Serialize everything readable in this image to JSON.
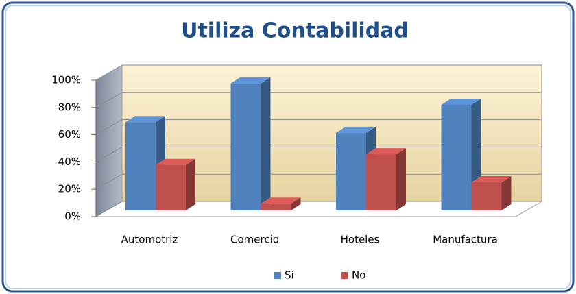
{
  "chart_data": {
    "type": "bar3d",
    "title": "Utiliza Contabilidad",
    "categories": [
      "Automotriz",
      "Comercio",
      "Hoteles",
      "Manufactura"
    ],
    "series": [
      {
        "name": "Si",
        "color": "#4f81bd",
        "values": [
          66,
          95,
          58,
          79
        ]
      },
      {
        "name": "No",
        "color": "#c0504d",
        "values": [
          34,
          5,
          42,
          21
        ]
      }
    ],
    "ylim": [
      0,
      100
    ],
    "yticks": [
      {
        "value": 0,
        "label": "0%"
      },
      {
        "value": 20,
        "label": "20%"
      },
      {
        "value": 40,
        "label": "40%"
      },
      {
        "value": 60,
        "label": "60%"
      },
      {
        "value": 80,
        "label": "80%"
      },
      {
        "value": 100,
        "label": "100%"
      }
    ],
    "grid": true,
    "legend": "bottom"
  }
}
